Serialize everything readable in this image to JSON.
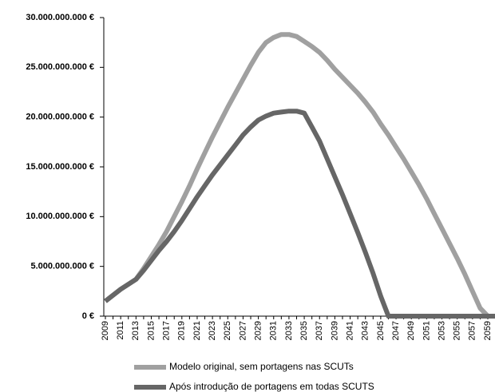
{
  "chart_data": {
    "type": "line",
    "categories": [
      "2009",
      null,
      "2011",
      null,
      "2013",
      null,
      "2015",
      null,
      "2017",
      null,
      "2019",
      null,
      "2021",
      null,
      "2023",
      null,
      "2025",
      null,
      "2027",
      null,
      "2029",
      null,
      "2031",
      null,
      "2033",
      null,
      "2035",
      null,
      "2037",
      null,
      "2039",
      null,
      "2041",
      null,
      "2043",
      null,
      "2045",
      null,
      "2047",
      null,
      "2049",
      null,
      "2051",
      null,
      "2053",
      null,
      "2055",
      null,
      "2057",
      null,
      "2059",
      null
    ],
    "series": [
      {
        "name": "Modelo original, sem portagens nas SCUTs",
        "color": "#a0a0a0",
        "values": [
          1500000000,
          2100000000,
          2700000000,
          3200000000,
          3700000000,
          4800000000,
          6000000000,
          7200000000,
          8500000000,
          10000000000,
          11500000000,
          13100000000,
          14800000000,
          16400000000,
          18000000000,
          19500000000,
          21000000000,
          22400000000,
          23800000000,
          25200000000,
          26500000000,
          27500000000,
          28000000000,
          28300000000,
          28300000000,
          28100000000,
          27600000000,
          27100000000,
          26500000000,
          25700000000,
          24800000000,
          24000000000,
          23200000000,
          22400000000,
          21500000000,
          20500000000,
          19300000000,
          18200000000,
          17000000000,
          15800000000,
          14500000000,
          13200000000,
          11800000000,
          10300000000,
          8800000000,
          7300000000,
          5800000000,
          4200000000,
          2500000000,
          800000000,
          0,
          0
        ]
      },
      {
        "name": "Após introdução de portagens em todas SCUTS",
        "color": "#666666",
        "values": [
          1500000000,
          2100000000,
          2700000000,
          3200000000,
          3700000000,
          4600000000,
          5600000000,
          6600000000,
          7500000000,
          8500000000,
          9600000000,
          10800000000,
          12000000000,
          13100000000,
          14200000000,
          15200000000,
          16200000000,
          17200000000,
          18200000000,
          19000000000,
          19700000000,
          20100000000,
          20400000000,
          20500000000,
          20600000000,
          20600000000,
          20400000000,
          19000000000,
          17600000000,
          15800000000,
          14000000000,
          12200000000,
          10300000000,
          8400000000,
          6400000000,
          4300000000,
          2000000000,
          0,
          0,
          0,
          0,
          0,
          0,
          0,
          0,
          0,
          0,
          0,
          0,
          0,
          0,
          0
        ]
      }
    ],
    "ylim": [
      0,
      30000000000
    ],
    "yticks": [
      {
        "value": 0,
        "label": "0 €"
      },
      {
        "value": 5000000000,
        "label": "5.000.000.000 €"
      },
      {
        "value": 10000000000,
        "label": "10.000.000.000 €"
      },
      {
        "value": 15000000000,
        "label": "15.000.000.000 €"
      },
      {
        "value": 20000000000,
        "label": "20.000.000.000 €"
      },
      {
        "value": 25000000000,
        "label": "25.000.000.000 €"
      },
      {
        "value": 30000000000,
        "label": "30.000.000.000 €"
      }
    ],
    "legend": "bottom"
  }
}
